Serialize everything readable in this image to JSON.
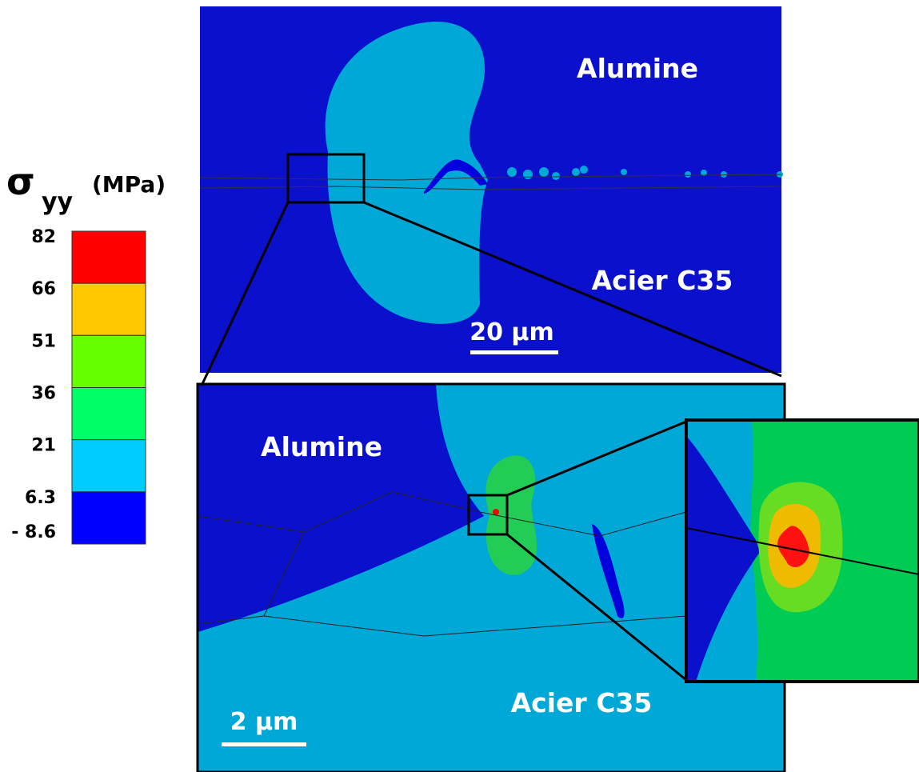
{
  "legend": {
    "symbol": "σ",
    "subscript": "yy",
    "unit": "(MPa)",
    "levels": [
      "82",
      "66",
      "51",
      "36",
      "21",
      "6.3",
      "- 8.6"
    ],
    "colors": [
      "#ff0000",
      "#ffc800",
      "#66ff00",
      "#00ff66",
      "#00ccff",
      "#0000ff"
    ]
  },
  "top_panel": {
    "upper_label": "Alumine",
    "lower_label": "Acier C35",
    "scale_bar": "20 µm"
  },
  "bottom_panel": {
    "upper_label": "Alumine",
    "lower_label": "Acier C35",
    "scale_bar": "2 µm"
  }
}
